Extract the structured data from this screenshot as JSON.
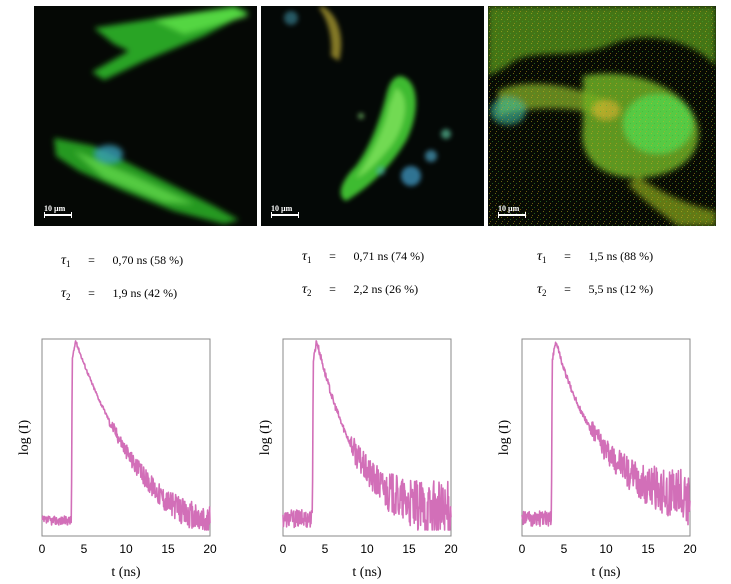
{
  "images": [
    {
      "scale_label": "10 µm"
    },
    {
      "scale_label": "10 µm"
    },
    {
      "scale_label": "10 µm"
    }
  ],
  "lifetimes": [
    {
      "tau1_symbol": "τ",
      "tau1_sub": "1",
      "tau1_eq": "=",
      "tau1_value": "0,70 ns  (58 %)",
      "tau2_symbol": "τ",
      "tau2_sub": "2",
      "tau2_eq": "=",
      "tau2_value": "1,9 ns  (42 %)"
    },
    {
      "tau1_symbol": "τ",
      "tau1_sub": "1",
      "tau1_eq": "=",
      "tau1_value": "0,71 ns  (74 %)",
      "tau2_symbol": "τ",
      "tau2_sub": "2",
      "tau2_eq": "=",
      "tau2_value": "2,2 ns  (26 %)"
    },
    {
      "tau1_symbol": "τ",
      "tau1_sub": "1",
      "tau1_eq": "=",
      "tau1_value": "1,5 ns  (88 %)",
      "tau2_symbol": "τ",
      "tau2_sub": "2",
      "tau2_eq": "=",
      "tau2_value": "5,5 ns  (12 %)"
    }
  ],
  "colors": {
    "curve": "#d26fb8"
  },
  "chart_data": [
    {
      "type": "line",
      "xlabel": "t (ns)",
      "ylabel": "log (I)",
      "xlim": [
        0,
        20
      ],
      "xticks": [
        "0",
        "5",
        "10",
        "15",
        "20"
      ],
      "yticks": [],
      "series": [
        {
          "values": [
            [
              0,
              0.05
            ],
            [
              3.5,
              0.05
            ],
            [
              3.6,
              0.9
            ],
            [
              4,
              1.0
            ],
            [
              5,
              0.88
            ],
            [
              6,
              0.77
            ],
            [
              7,
              0.67
            ],
            [
              8,
              0.58
            ],
            [
              9,
              0.5
            ],
            [
              10,
              0.42
            ],
            [
              11,
              0.35
            ],
            [
              12,
              0.29
            ],
            [
              13,
              0.24
            ],
            [
              14,
              0.19
            ],
            [
              15,
              0.15
            ],
            [
              16,
              0.12
            ],
            [
              17,
              0.09
            ],
            [
              18,
              0.07
            ],
            [
              19,
              0.05
            ],
            [
              20,
              0.04
            ]
          ],
          "noise": 0.03
        }
      ]
    },
    {
      "type": "line",
      "xlabel": "t (ns)",
      "ylabel": "log (I)",
      "xlim": [
        0,
        20
      ],
      "xticks": [
        "0",
        "5",
        "10",
        "15",
        "20"
      ],
      "yticks": [],
      "series": [
        {
          "values": [
            [
              0,
              0.06
            ],
            [
              3.5,
              0.06
            ],
            [
              3.6,
              0.9
            ],
            [
              4,
              1.0
            ],
            [
              5,
              0.83
            ],
            [
              6,
              0.68
            ],
            [
              7,
              0.56
            ],
            [
              8,
              0.46
            ],
            [
              9,
              0.38
            ],
            [
              10,
              0.31
            ],
            [
              11,
              0.26
            ],
            [
              12,
              0.22
            ],
            [
              13,
              0.19
            ],
            [
              14,
              0.16
            ],
            [
              15,
              0.14
            ],
            [
              16,
              0.12
            ],
            [
              17,
              0.11
            ],
            [
              18,
              0.1
            ],
            [
              19,
              0.09
            ],
            [
              20,
              0.08
            ]
          ],
          "noise": 0.06
        }
      ]
    },
    {
      "type": "line",
      "xlabel": "t (ns)",
      "ylabel": "log (I)",
      "xlim": [
        0,
        20
      ],
      "xticks": [
        "0",
        "5",
        "10",
        "15",
        "20"
      ],
      "yticks": [],
      "series": [
        {
          "values": [
            [
              0,
              0.06
            ],
            [
              3.5,
              0.06
            ],
            [
              3.6,
              0.9
            ],
            [
              4,
              1.0
            ],
            [
              5,
              0.85
            ],
            [
              6,
              0.73
            ],
            [
              7,
              0.63
            ],
            [
              8,
              0.55
            ],
            [
              9,
              0.48
            ],
            [
              10,
              0.42
            ],
            [
              11,
              0.37
            ],
            [
              12,
              0.33
            ],
            [
              13,
              0.29
            ],
            [
              14,
              0.26
            ],
            [
              15,
              0.24
            ],
            [
              16,
              0.22
            ],
            [
              17,
              0.2
            ],
            [
              18,
              0.19
            ],
            [
              19,
              0.18
            ],
            [
              20,
              0.17
            ]
          ],
          "noise": 0.05
        }
      ]
    }
  ]
}
